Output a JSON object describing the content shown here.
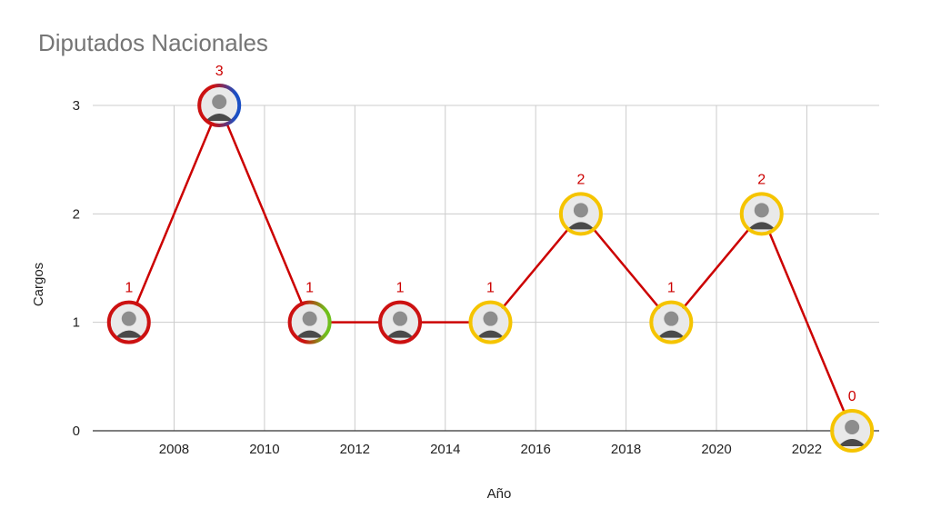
{
  "chart_data": {
    "type": "line",
    "title": "Diputados Nacionales",
    "xlabel": "Año",
    "ylabel": "Cargos",
    "x": [
      2007,
      2009,
      2011,
      2013,
      2015,
      2017,
      2019,
      2021,
      2023
    ],
    "series": [
      {
        "values": [
          1,
          3,
          1,
          1,
          1,
          2,
          1,
          2,
          0
        ]
      }
    ],
    "xlim": [
      2006.2,
      2023.6
    ],
    "ylim": [
      0,
      3
    ],
    "xticks": [
      "2008",
      "2010",
      "2012",
      "2014",
      "2016",
      "2018",
      "2020",
      "2022"
    ],
    "yticks": [
      "0",
      "1",
      "2",
      "3"
    ],
    "grid": true,
    "legend": "none",
    "line_color": "#cc0000",
    "label_color": "#cc0000",
    "markers": [
      {
        "icon": "portrait-photo",
        "ring": [
          "#cc1111"
        ]
      },
      {
        "icon": "portrait-photo",
        "ring": [
          "#cc1111",
          "#1a4fc4"
        ]
      },
      {
        "icon": "portrait-photo",
        "ring": [
          "#cc1111",
          "#6fbf1d"
        ]
      },
      {
        "icon": "portrait-photo",
        "ring": [
          "#cc1111"
        ]
      },
      {
        "icon": "portrait-photo",
        "ring": [
          "#f5c400"
        ]
      },
      {
        "icon": "portrait-photo",
        "ring": [
          "#f5c400"
        ]
      },
      {
        "icon": "portrait-photo",
        "ring": [
          "#f5c400"
        ]
      },
      {
        "icon": "portrait-photo",
        "ring": [
          "#f5c400"
        ]
      },
      {
        "icon": "portrait-photo",
        "ring": [
          "#f5c400"
        ]
      }
    ]
  }
}
